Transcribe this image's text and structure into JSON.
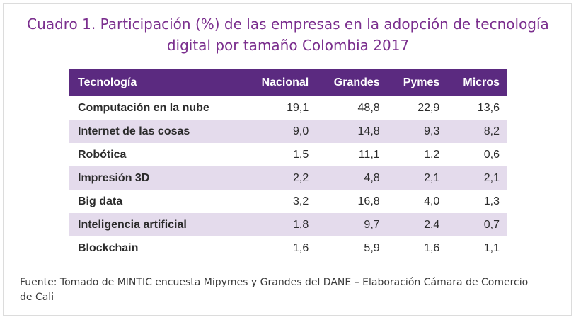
{
  "title": {
    "line1": "Cuadro 1. Participación (%) de las empresas en la adopción de tecnología",
    "line2": "digital por tamaño Colombia 2017"
  },
  "table": {
    "headers": [
      "Tecnología",
      "Nacional",
      "Grandes",
      "Pymes",
      "Micros"
    ],
    "rows": [
      [
        "Computación en la nube",
        "19,1",
        "48,8",
        "22,9",
        "13,6"
      ],
      [
        "Internet de las cosas",
        "9,0",
        "14,8",
        "9,3",
        "8,2"
      ],
      [
        "Robótica",
        "1,5",
        "11,1",
        "1,2",
        "0,6"
      ],
      [
        "Impresión 3D",
        "2,2",
        "4,8",
        "2,1",
        "2,1"
      ],
      [
        "Big data",
        "3,2",
        "16,8",
        "4,0",
        "1,3"
      ],
      [
        "Inteligencia artificial",
        "1,8",
        "9,7",
        "2,4",
        "0,7"
      ],
      [
        "Blockchain",
        "1,6",
        "5,9",
        "1,6",
        "1,1"
      ]
    ]
  },
  "source": "Fuente: Tomado de MINTIC encuesta Mipymes y Grandes del DANE – Elaboración Cámara de Comercio de Cali",
  "colors": {
    "title": "#7b2f8e",
    "header_bg": "#5b2a80",
    "stripe": "#e4dbec"
  }
}
